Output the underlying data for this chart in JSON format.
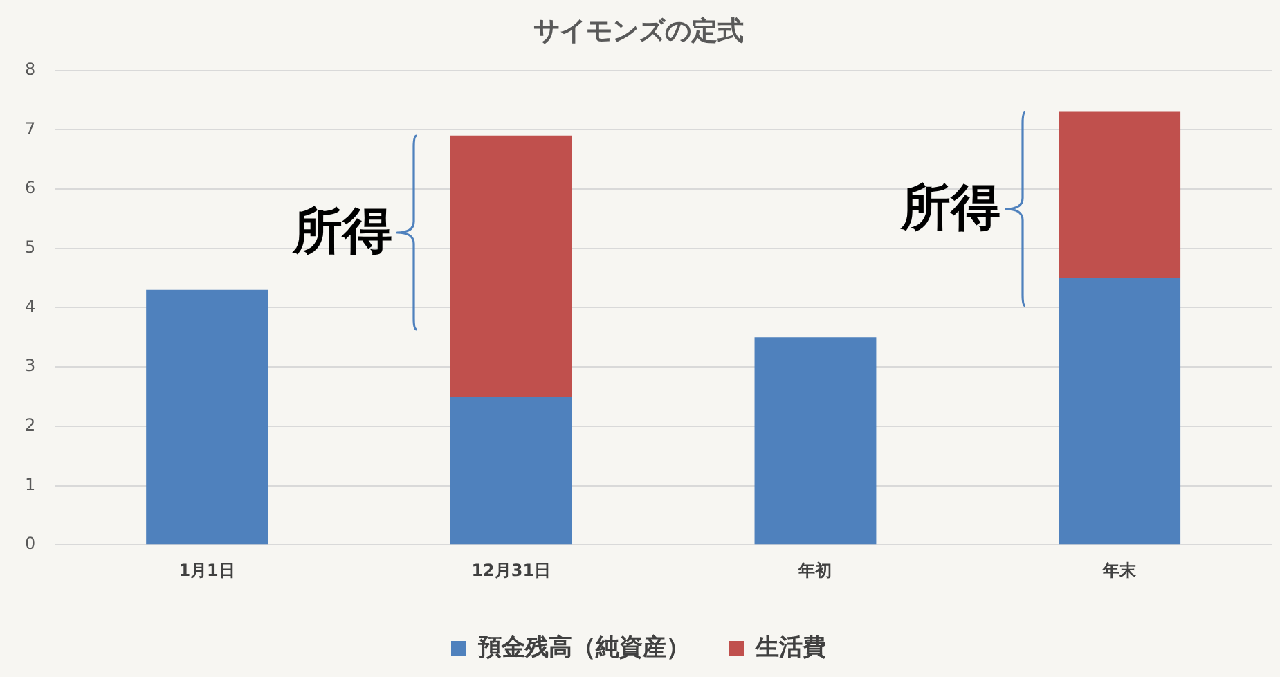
{
  "chart_data": {
    "type": "bar",
    "title": "サイモンズの定式",
    "categories": [
      "1月1日",
      "12月31日",
      "年初",
      "年末"
    ],
    "stacked": true,
    "series": [
      {
        "name": "預金残高（純資産）",
        "color": "#4f81bd",
        "values": [
          4.3,
          2.5,
          3.5,
          4.5
        ]
      },
      {
        "name": "生活費",
        "color": "#c0504d",
        "values": [
          0,
          4.4,
          0,
          2.8
        ]
      }
    ],
    "ylim": [
      0,
      8
    ],
    "yticks": [
      0,
      1,
      2,
      3,
      4,
      5,
      6,
      7,
      8
    ],
    "grid": "y",
    "legend": "bottom",
    "annotations": [
      "所得",
      "所得"
    ]
  }
}
